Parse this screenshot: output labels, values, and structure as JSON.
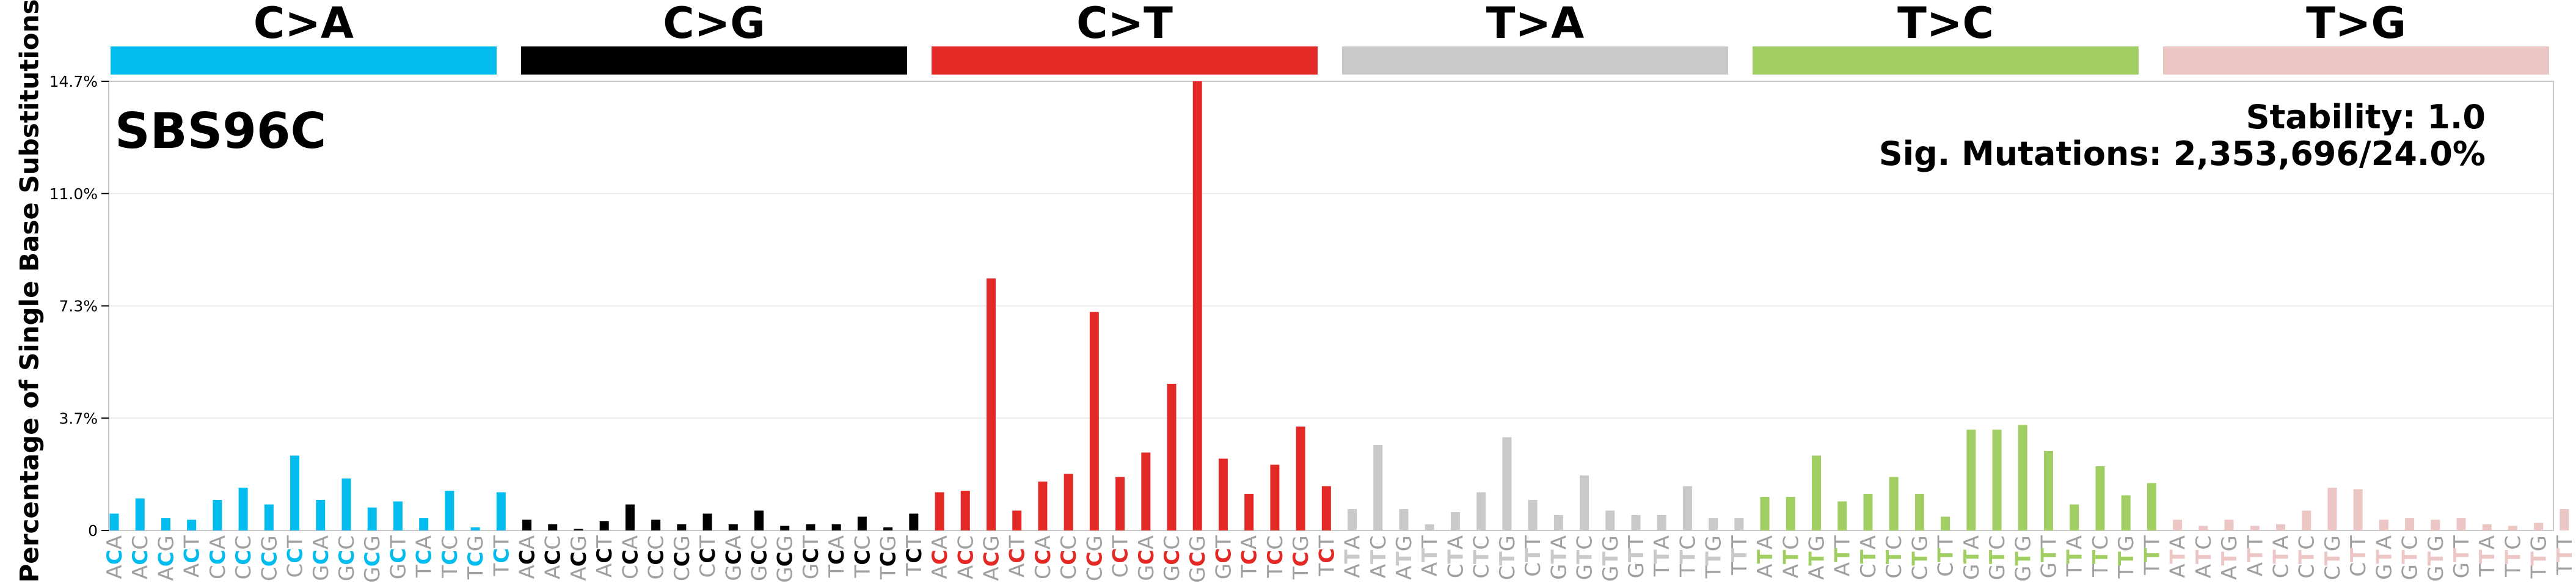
{
  "chart_data": {
    "type": "bar",
    "title": "SBS96C",
    "ylabel": "Percentage of Single Base Substitutions",
    "yticks": [
      "0",
      "3.7%",
      "7.3%",
      "11.0%",
      "14.7%"
    ],
    "ylim": [
      0,
      14.7
    ],
    "annotations": {
      "stability": "Stability: 1.0",
      "sig_mutations": "Sig. Mutations: 2,353,696/24.0%"
    },
    "groups": [
      {
        "name": "C>A",
        "color": "#03bcee",
        "ref": "C"
      },
      {
        "name": "C>G",
        "color": "#010101",
        "ref": "C"
      },
      {
        "name": "C>T",
        "color": "#e32926",
        "ref": "C"
      },
      {
        "name": "T>A",
        "color": "#cac9c9",
        "ref": "T"
      },
      {
        "name": "T>C",
        "color": "#a1ce63",
        "ref": "T"
      },
      {
        "name": "T>G",
        "color": "#ebc6c4",
        "ref": "T"
      }
    ],
    "contexts_C": [
      "ACA",
      "ACC",
      "ACG",
      "ACT",
      "CCA",
      "CCC",
      "CCG",
      "CCT",
      "GCA",
      "GCC",
      "GCG",
      "GCT",
      "TCA",
      "TCC",
      "TCG",
      "TCT"
    ],
    "contexts_T": [
      "ATA",
      "ATC",
      "ATG",
      "ATT",
      "CTA",
      "CTC",
      "CTG",
      "CTT",
      "GTA",
      "GTC",
      "GTG",
      "GTT",
      "TTA",
      "TTC",
      "TTG",
      "TTT"
    ],
    "values": [
      [
        0.55,
        1.05,
        0.4,
        0.35,
        1.0,
        1.4,
        0.85,
        2.45,
        1.0,
        1.7,
        0.75,
        0.95,
        0.4,
        1.3,
        0.1,
        1.25
      ],
      [
        0.35,
        0.2,
        0.05,
        0.3,
        0.85,
        0.35,
        0.2,
        0.55,
        0.2,
        0.65,
        0.15,
        0.2,
        0.2,
        0.45,
        0.1,
        0.55
      ],
      [
        1.25,
        1.3,
        8.25,
        0.65,
        1.6,
        1.85,
        7.15,
        1.75,
        2.55,
        4.8,
        15.0,
        2.35,
        1.2,
        2.15,
        3.4,
        1.45
      ],
      [
        0.7,
        2.8,
        0.7,
        0.2,
        0.6,
        1.25,
        3.05,
        1.0,
        0.5,
        1.8,
        0.65,
        0.5,
        0.5,
        1.45,
        0.4,
        0.4
      ],
      [
        1.1,
        1.1,
        2.45,
        0.95,
        1.2,
        1.75,
        1.2,
        0.45,
        3.3,
        3.3,
        3.45,
        2.6,
        0.85,
        2.1,
        1.15,
        1.55
      ],
      [
        0.35,
        0.15,
        0.35,
        0.15,
        0.2,
        0.65,
        1.4,
        1.35,
        0.35,
        0.4,
        0.35,
        0.4,
        0.2,
        0.15,
        0.25,
        0.7
      ]
    ]
  }
}
